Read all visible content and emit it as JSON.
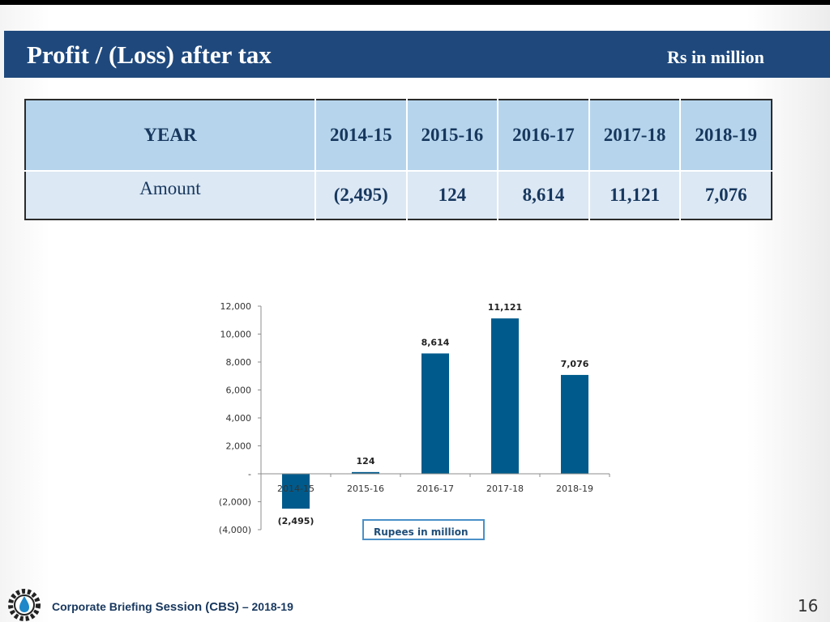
{
  "slide": {
    "title": "Profit / (Loss) after tax",
    "unit": "Rs in million",
    "page_number": "16"
  },
  "table": {
    "row_header": "YEAR",
    "row_label": "Amount",
    "columns": [
      "2014-15",
      "2015-16",
      "2016-17",
      "2017-18",
      "2018-19"
    ],
    "values": [
      "(2,495)",
      "124",
      "8,614",
      "11,121",
      "7,076"
    ]
  },
  "chart_data": {
    "type": "bar",
    "categories": [
      "2014-15",
      "2015-16",
      "2016-17",
      "2017-18",
      "2018-19"
    ],
    "values": [
      -2495,
      124,
      8614,
      11121,
      7076
    ],
    "data_labels": [
      "(2,495)",
      "124",
      "8,614",
      "11,121",
      "7,076"
    ],
    "y_ticks": [
      12000,
      10000,
      8000,
      6000,
      4000,
      2000,
      0,
      -2000,
      -4000
    ],
    "y_tick_labels": [
      "12,000",
      "10,000",
      "8,000",
      "6,000",
      "4,000",
      "2,000",
      "-",
      "(2,000)",
      "(4,000)"
    ],
    "ylim": [
      -4000,
      12000
    ],
    "grid": false,
    "bar_color": "#005b8c",
    "legend_label": "Rupees in million",
    "legend_placement": "bottom"
  },
  "footer": {
    "part1": "Corporate Briefing ",
    "part2": "Session (CBS)",
    "part3": " – 2018-19"
  }
}
